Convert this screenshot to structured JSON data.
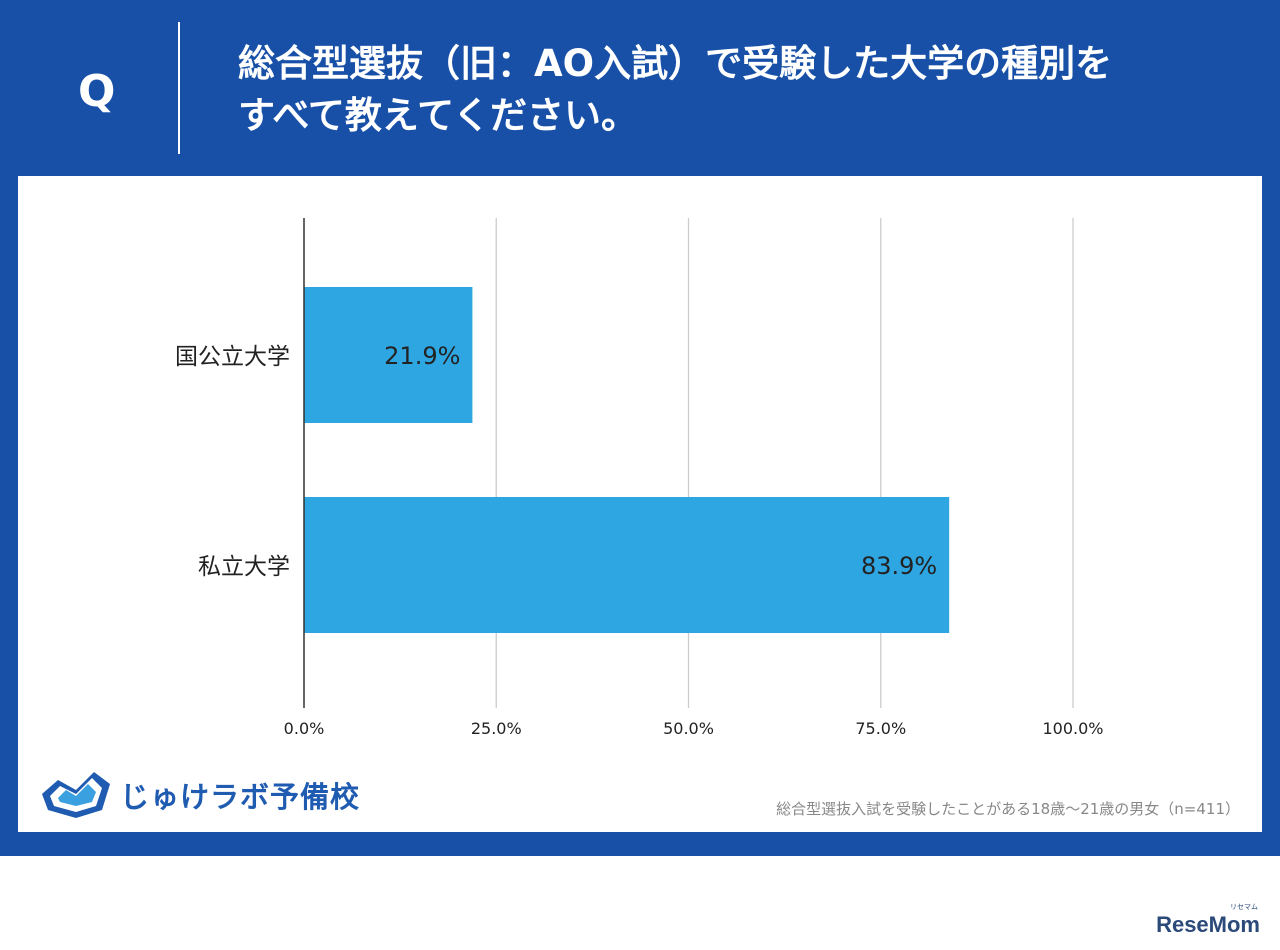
{
  "header": {
    "q_mark": "Q",
    "question_line1": "総合型選抜（旧：AO入試）で受験した大学の種別を",
    "question_line2": "すべて教えてください。"
  },
  "chart_data": {
    "type": "bar",
    "orientation": "horizontal",
    "categories": [
      "国公立大学",
      "私立大学"
    ],
    "values": [
      21.9,
      83.9
    ],
    "value_labels": [
      "21.9%",
      "83.9%"
    ],
    "xlim": [
      0,
      100
    ],
    "x_ticks": [
      "0.0%",
      "25.0%",
      "50.0%",
      "75.0%",
      "100.0%"
    ],
    "x_tick_values": [
      0,
      25,
      50,
      75,
      100
    ],
    "grid": true,
    "bar_color": "#2ea6e1"
  },
  "footer": {
    "logo_text": "じゅけラボ予備校",
    "note": "総合型選抜入試を受験したことがある18歳～21歳の男女（n=411）"
  },
  "watermark": {
    "text": "ReseMom",
    "sub": "リセマム"
  },
  "colors": {
    "frame": "#1850a8",
    "bar": "#2ea6e1",
    "logo": "#1f5bb0"
  }
}
